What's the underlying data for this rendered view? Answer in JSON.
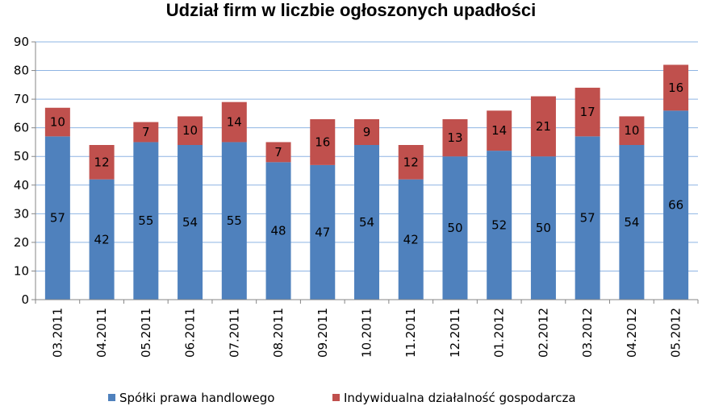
{
  "chart_data": {
    "type": "bar",
    "stacked": true,
    "title": "Udział firm w liczbie ogłoszonych upadłości",
    "xlabel": "",
    "ylabel": "",
    "ylim": [
      0,
      90
    ],
    "yticks": [
      0,
      10,
      20,
      30,
      40,
      50,
      60,
      70,
      80,
      90
    ],
    "grid": true,
    "legend_position": "bottom",
    "categories": [
      "03.2011",
      "04.2011",
      "05.2011",
      "06.2011",
      "07.2011",
      "08.2011",
      "09.2011",
      "10.2011",
      "11.2011",
      "12.2011",
      "01.2012",
      "02.2012",
      "03.2012",
      "04.2012",
      "05.2012"
    ],
    "series": [
      {
        "name": "Spółki prawa handlowego",
        "color": "#4F81BD",
        "values": [
          57,
          42,
          55,
          54,
          55,
          48,
          47,
          54,
          42,
          50,
          52,
          50,
          57,
          54,
          66
        ]
      },
      {
        "name": "Indywidualna działalność gospodarcza",
        "color": "#C0504D",
        "values": [
          10,
          12,
          7,
          10,
          14,
          7,
          16,
          9,
          12,
          13,
          14,
          21,
          17,
          10,
          16
        ]
      }
    ]
  }
}
